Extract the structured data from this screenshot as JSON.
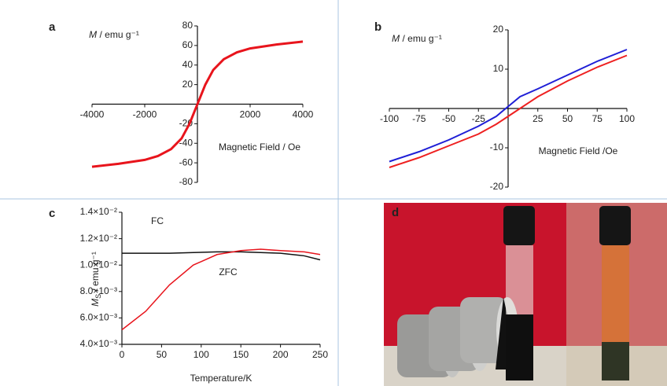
{
  "chart_data": [
    {
      "type": "line",
      "label": "a",
      "xlabel": "Magnetic Field / Oe",
      "ylabel": {
        "symbol": "M",
        "unit": " / emu g⁻¹"
      },
      "x": [
        -4000,
        -3000,
        -2000,
        -1500,
        -1000,
        -600,
        -300,
        -150,
        0,
        150,
        300,
        600,
        1000,
        1500,
        2000,
        3000,
        4000
      ],
      "values": [
        -64,
        -61,
        -57,
        -53,
        -46,
        -35,
        -20,
        -10,
        0,
        10,
        20,
        35,
        46,
        53,
        57,
        61,
        64
      ],
      "color": "#e8141c",
      "xlim": [
        -4000,
        4000
      ],
      "ylim": [
        -80,
        80
      ],
      "xticks": [
        -4000,
        -2000,
        2000,
        4000
      ],
      "yticks": [
        80,
        60,
        40,
        20,
        -20,
        -40,
        -60,
        -80
      ]
    },
    {
      "type": "line",
      "label": "b",
      "xlabel": "Magnetic Field /Oe",
      "ylabel": {
        "symbol": "M",
        "unit": " / emu g⁻¹"
      },
      "x": [
        -100,
        -75,
        -50,
        -25,
        -10,
        0,
        10,
        25,
        50,
        75,
        100
      ],
      "series": [
        {
          "color": "#1f1fd6",
          "values": [
            -13.5,
            -11,
            -8,
            -4.5,
            -2,
            0.5,
            3,
            5,
            8.5,
            12,
            15
          ]
        },
        {
          "color": "#ee2020",
          "values": [
            -15,
            -12.5,
            -9.5,
            -6.5,
            -4,
            -2,
            0,
            3,
            7,
            10.5,
            13.5
          ]
        }
      ],
      "xlim": [
        -100,
        100
      ],
      "ylim": [
        -20,
        20
      ],
      "xticks": [
        -100,
        -75,
        -50,
        -25,
        25,
        50,
        75,
        100
      ],
      "yticks": [
        20,
        10,
        -10,
        -20
      ]
    },
    {
      "type": "line",
      "label": "c",
      "xlabel": "Temperature/K",
      "ylabel": {
        "symbol": "M",
        "subscript": "S",
        "unit": " / emu g⁻¹"
      },
      "x": [
        0,
        30,
        60,
        90,
        120,
        150,
        175,
        200,
        230,
        250
      ],
      "series": [
        {
          "name": "FC",
          "color": "#111111",
          "values": [
            0.0109,
            0.0109,
            0.0109,
            0.01095,
            0.011,
            0.011,
            0.01095,
            0.0109,
            0.0107,
            0.0104
          ]
        },
        {
          "name": "ZFC",
          "color": "#e8141c",
          "values": [
            0.0051,
            0.0065,
            0.0085,
            0.01,
            0.0108,
            0.0111,
            0.0112,
            0.0111,
            0.011,
            0.0108
          ]
        }
      ],
      "xlim": [
        0,
        250
      ],
      "ylim": [
        0.004,
        0.014
      ],
      "xticks": [
        0,
        50,
        100,
        150,
        200,
        250
      ],
      "yticks": [
        {
          "value": 0.004,
          "label": "4.0×10⁻³"
        },
        {
          "value": 0.006,
          "label": "6.0×10⁻³"
        },
        {
          "value": 0.008,
          "label": "8.0×10⁻³"
        },
        {
          "value": 0.01,
          "label": "1.0×10⁻²"
        },
        {
          "value": 0.012,
          "label": "1.2×10⁻²"
        },
        {
          "value": 0.014,
          "label": "1.4×10⁻²"
        }
      ]
    }
  ],
  "photo": {
    "label": "d"
  }
}
